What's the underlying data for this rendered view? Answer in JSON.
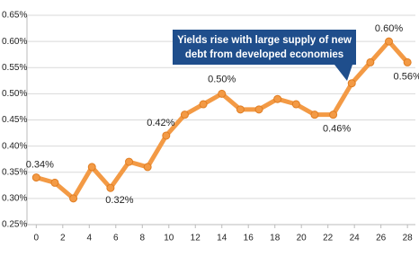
{
  "chart_data": {
    "type": "line",
    "x": [
      0,
      1.4,
      2.8,
      4.2,
      5.6,
      7,
      8.4,
      9.8,
      11.2,
      12.6,
      14,
      15.4,
      16.8,
      18.2,
      19.6,
      21,
      22.4,
      23.8,
      25.2,
      26.6,
      28
    ],
    "series": [
      {
        "color": "#f39a45",
        "values": [
          0.34,
          0.33,
          0.3,
          0.36,
          0.32,
          0.37,
          0.36,
          0.42,
          0.46,
          0.48,
          0.5,
          0.47,
          0.47,
          0.49,
          0.48,
          0.46,
          0.46,
          0.52,
          0.56,
          0.6,
          0.56
        ],
        "value_labels": [
          "0.34%",
          null,
          null,
          null,
          "0.32%",
          null,
          null,
          "0.42%",
          null,
          null,
          "0.50%",
          null,
          null,
          null,
          null,
          null,
          "0.46%",
          null,
          null,
          "0.60%",
          "0.56%"
        ]
      }
    ],
    "xlim": [
      -0.7,
      28.6
    ],
    "xticks": [
      0,
      2,
      4,
      6,
      8,
      10,
      12,
      14,
      16,
      18,
      20,
      22,
      24,
      26,
      28
    ],
    "ylim": [
      0.25,
      0.65
    ],
    "yticks": [
      {
        "value": 0.25,
        "label": "0.25%"
      },
      {
        "value": 0.3,
        "label": "0.30%"
      },
      {
        "value": 0.35,
        "label": "0.35%"
      },
      {
        "value": 0.4,
        "label": "0.40%"
      },
      {
        "value": 0.45,
        "label": "0.45%"
      },
      {
        "value": 0.5,
        "label": "0.50%"
      },
      {
        "value": 0.55,
        "label": "0.55%"
      },
      {
        "value": 0.6,
        "label": "0.60%"
      },
      {
        "value": 0.65,
        "label": "0.65%"
      }
    ],
    "grid": true,
    "annotation": [
      "Yields rise with large supply of new",
      "debt from developed economies"
    ]
  }
}
